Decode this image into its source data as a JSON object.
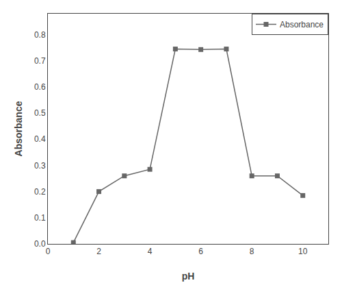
{
  "chart_data": {
    "type": "line",
    "x": [
      1,
      2,
      3,
      4,
      5,
      6,
      7,
      8,
      9,
      10
    ],
    "series": [
      {
        "name": "Absorbance",
        "color": "#666666",
        "marker": "square",
        "values": [
          0.005,
          0.2,
          0.26,
          0.285,
          0.745,
          0.743,
          0.745,
          0.26,
          0.26,
          0.185
        ]
      }
    ],
    "xlabel": "pH",
    "ylabel": "Absorbance",
    "xlim": [
      0,
      11
    ],
    "ylim": [
      0.0,
      0.88
    ],
    "xticks": [
      0,
      2,
      4,
      6,
      8,
      10
    ],
    "yticks": [
      {
        "value": 0.0,
        "label": "0.0"
      },
      0.1,
      0.2,
      0.3,
      0.4,
      0.5,
      0.6,
      0.7,
      0.8
    ],
    "grid": false,
    "legend": "upper right"
  }
}
